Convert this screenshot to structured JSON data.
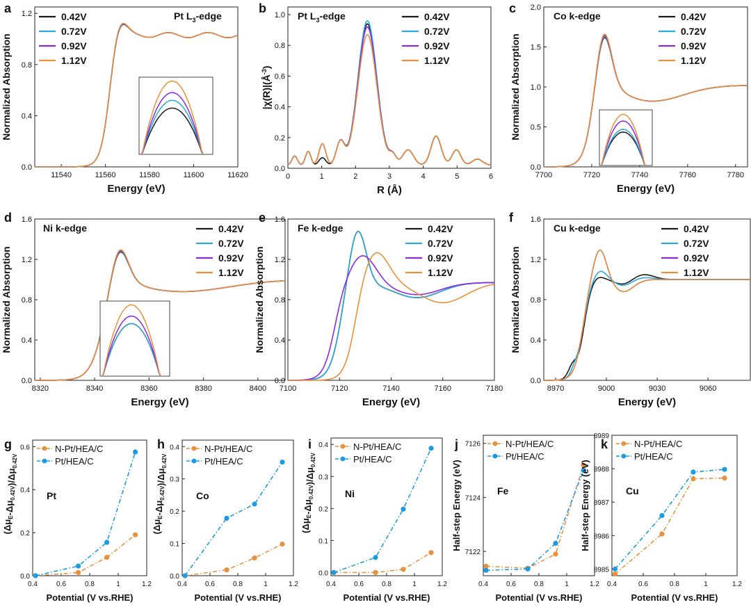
{
  "figure": {
    "colors": {
      "v042": "#1a1a1a",
      "v072": "#2aa7dd",
      "v092": "#8a2be2",
      "v112": "#e8913a",
      "npt": "#e8913a",
      "pt": "#1a9be6"
    }
  },
  "chart_data": [
    {
      "id": "a",
      "type": "line",
      "panel_label": "a",
      "title": "Pt L3-edge",
      "title_main": "Pt L",
      "title_sub": "3",
      "title_tail": "-edge",
      "xlabel": "Energy (eV)",
      "ylabel": "Normalized Absorption",
      "xlim": [
        11528,
        11620
      ],
      "ylim": [
        0,
        1.25
      ],
      "xticks": [
        11540,
        11560,
        11580,
        11600,
        11620
      ],
      "yticks": [
        0.0,
        0.4,
        0.8,
        1.2
      ],
      "ytick_decimals": 1,
      "legend": [
        "0.42V",
        "0.72V",
        "0.92V",
        "1.12V"
      ],
      "legend_position": "top-left",
      "curve": {
        "kind": "edge",
        "e0": 11562,
        "width": 2.2,
        "post": 1.03,
        "peak_x": 11566,
        "peak_h": 0.17,
        "peak_w": 3.5,
        "osc_amp": 0.02,
        "osc_period": 18
      },
      "series_offsets": [
        0,
        0,
        0,
        0
      ],
      "inset": {
        "label": "zoomed white-line peak"
      }
    },
    {
      "id": "b",
      "type": "line",
      "panel_label": "b",
      "title": "Pt L3-edge",
      "title_main": "Pt L",
      "title_sub": "3",
      "title_tail": "-edge",
      "xlabel": "R (Å)",
      "ylabel": "|χ(R)|(Å-3)",
      "ylabel_main": "|χ(R)|(Å",
      "ylabel_sup": "-3",
      "ylabel_tail": ")",
      "xlim": [
        0,
        6
      ],
      "ylim": [
        0,
        1.05
      ],
      "xticks": [
        0,
        1,
        2,
        3,
        4,
        5,
        6
      ],
      "yticks": [
        0.0,
        0.2,
        0.4,
        0.6,
        0.8,
        1.0
      ],
      "ytick_decimals": 1,
      "legend": [
        "0.42V",
        "0.72V",
        "0.92V",
        "1.12V"
      ],
      "legend_position": "top-right",
      "curve": {
        "kind": "ft",
        "main_peak_r": 2.35,
        "main_peak_heights": [
          0.92,
          0.94,
          0.9,
          0.85
        ]
      },
      "series_offsets": [
        0,
        0,
        0,
        0
      ]
    },
    {
      "id": "c",
      "type": "line",
      "panel_label": "c",
      "title": "Co k-edge",
      "xlabel": "Energy (eV)",
      "ylabel": "Normalized Absorption",
      "xlim": [
        7700,
        7785
      ],
      "ylim": [
        0,
        2.0
      ],
      "xticks": [
        7700,
        7720,
        7740,
        7760,
        7780
      ],
      "yticks": [
        0.0,
        0.5,
        1.0,
        1.5,
        2.0
      ],
      "ytick_decimals": 1,
      "legend": [
        "0.42V",
        "0.72V",
        "0.92V",
        "1.12V"
      ],
      "legend_position": "top-right",
      "curve": {
        "kind": "edge",
        "e0": 7720,
        "width": 2.3,
        "post": 1.02,
        "peak_x": 7725,
        "peak_h": 0.7,
        "peak_w": 3.2,
        "dip_x": 7745,
        "dip_h": -0.2,
        "dip_w": 6
      },
      "peak_values": [
        1.68,
        1.7,
        1.72,
        1.75
      ],
      "inset": {
        "label": "zoomed white-line peak"
      }
    },
    {
      "id": "d",
      "type": "line",
      "panel_label": "d",
      "title": "Ni k-edge",
      "xlabel": "Energy (eV)",
      "ylabel": "Normalized Absorption",
      "xlim": [
        8318,
        8410
      ],
      "ylim": [
        0,
        1.6
      ],
      "xticks": [
        8320,
        8340,
        8360,
        8380,
        8400
      ],
      "yticks": [
        0.0,
        0.4,
        0.8,
        1.2,
        1.6
      ],
      "ytick_decimals": 1,
      "legend": [
        "0.42V",
        "0.72V",
        "0.92V",
        "1.12V"
      ],
      "legend_position": "top-right",
      "curve": {
        "kind": "edge",
        "e0": 8343,
        "width": 2.6,
        "post": 1.0,
        "peak_x": 8349,
        "peak_h": 0.36,
        "peak_w": 3.2,
        "dip_x": 8372,
        "dip_h": -0.12,
        "dip_w": 8
      },
      "inset": {
        "label": "zoomed white-line peak"
      }
    },
    {
      "id": "e",
      "type": "line",
      "panel_label": "e",
      "title": "Fe k-edge",
      "xlabel": "Energy (eV)",
      "ylabel": "Normalized Absorption",
      "xlim": [
        7100,
        7180
      ],
      "ylim": [
        0,
        1.6
      ],
      "xticks": [
        7100,
        7120,
        7140,
        7160,
        7180
      ],
      "yticks": [
        0.0,
        0.4,
        0.8,
        1.2,
        1.6
      ],
      "ytick_decimals": 1,
      "legend": [
        "0.42V",
        "0.72V",
        "0.92V",
        "1.12V"
      ],
      "legend_position": "top-right",
      "peak_values": [
        1.45,
        1.45,
        1.2,
        1.26
      ]
    },
    {
      "id": "f",
      "type": "line",
      "panel_label": "f",
      "title": "Cu k-edge",
      "xlabel": "Energy (eV)",
      "ylabel": "Normalized Absorption",
      "xlim": [
        8963,
        9085
      ],
      "ylim": [
        0,
        1.6
      ],
      "xticks": [
        8970,
        9000,
        9030,
        9060
      ],
      "yticks": [
        0.0,
        0.4,
        0.8,
        1.2,
        1.6
      ],
      "ytick_decimals": 1,
      "legend": [
        "0.42V",
        "0.72V",
        "0.92V",
        "1.12V"
      ],
      "legend_position": "top-right",
      "peak_values": [
        1.03,
        1.09,
        1.31,
        1.29
      ]
    },
    {
      "id": "g",
      "type": "line",
      "panel_label": "g",
      "element": "Pt",
      "xlabel": "Potential (V vs.RHE)",
      "ylabel": "(Δμ_E-Δμ_0.42V)/Δμ_0.42V",
      "xlim": [
        0.4,
        1.2
      ],
      "ylim": [
        0,
        0.63
      ],
      "xticks": [
        0.4,
        0.6,
        0.8,
        1.0,
        1.2
      ],
      "yticks": [
        0.0,
        0.2,
        0.4,
        0.6
      ],
      "ytick_decimals": 1,
      "x": [
        0.42,
        0.72,
        0.92,
        1.12
      ],
      "series": [
        {
          "name": "N-Pt/HEA/C",
          "values": [
            0.0,
            0.015,
            0.085,
            0.19
          ]
        },
        {
          "name": "Pt/HEA/C",
          "values": [
            0.0,
            0.045,
            0.155,
            0.575
          ]
        }
      ]
    },
    {
      "id": "h",
      "type": "line",
      "panel_label": "h",
      "element": "Co",
      "xlabel": "Potential (V vs.RHE)",
      "ylabel": "(Δμ_E-Δμ_0.42V)/Δμ_0.42V",
      "xlim": [
        0.4,
        1.2
      ],
      "ylim": [
        0,
        0.42
      ],
      "xticks": [
        0.4,
        0.6,
        0.8,
        1.0,
        1.2
      ],
      "yticks": [
        0.0,
        0.1,
        0.2,
        0.3,
        0.4
      ],
      "ytick_decimals": 1,
      "x": [
        0.42,
        0.72,
        0.92,
        1.12
      ],
      "series": [
        {
          "name": "N-Pt/HEA/C",
          "values": [
            0.0,
            0.018,
            0.055,
            0.098
          ]
        },
        {
          "name": "Pt/HEA/C",
          "values": [
            0.0,
            0.178,
            0.222,
            0.352
          ]
        }
      ]
    },
    {
      "id": "i",
      "type": "line",
      "panel_label": "i",
      "element": "Ni",
      "xlabel": "Potential (V vs.RHE)",
      "ylabel": "(Δμ_E-Δμ_0.42V)/Δμ_0.42V",
      "xlim": [
        0.4,
        1.2
      ],
      "ylim": [
        -0.01,
        0.42
      ],
      "xticks": [
        0.4,
        0.6,
        0.8,
        1.0,
        1.2
      ],
      "yticks": [
        0.0,
        0.1,
        0.2,
        0.3,
        0.4
      ],
      "ytick_decimals": 1,
      "x": [
        0.42,
        0.72,
        0.92,
        1.12
      ],
      "series": [
        {
          "name": "N-Pt/HEA/C",
          "values": [
            0.0,
            0.0,
            0.01,
            0.062
          ]
        },
        {
          "name": "Pt/HEA/C",
          "values": [
            0.0,
            0.047,
            0.198,
            0.388
          ]
        }
      ]
    },
    {
      "id": "j",
      "type": "line",
      "panel_label": "j",
      "element": "Fe",
      "xlabel": "Potential (V vs.RHE)",
      "ylabel": "Half-step Energy (eV)",
      "xlim": [
        0.4,
        1.2
      ],
      "ylim": [
        7121.1,
        7126.3
      ],
      "xticks": [
        0.4,
        0.6,
        0.8,
        1.0,
        1.2
      ],
      "yticks": [
        7122,
        7124,
        7126
      ],
      "ytick_decimals": 0,
      "x": [
        0.42,
        0.72,
        0.92,
        1.12
      ],
      "series": [
        {
          "name": "N-Pt/HEA/C",
          "values": [
            7121.45,
            7121.38,
            7121.9,
            7125.2
          ]
        },
        {
          "name": "Pt/HEA/C",
          "values": [
            7121.3,
            7121.35,
            7122.3,
            7125.0
          ]
        }
      ]
    },
    {
      "id": "k",
      "type": "line",
      "panel_label": "k",
      "element": "Cu",
      "xlabel": "Potential (V vs.RHE)",
      "ylabel": "Half-step Energy (eV)",
      "xlim": [
        0.4,
        1.2
      ],
      "ylim": [
        8984.8,
        8989.0
      ],
      "xticks": [
        0.4,
        0.6,
        0.8,
        1.0,
        1.2
      ],
      "yticks": [
        8985,
        8986,
        8987,
        8988,
        8989
      ],
      "ytick_decimals": 0,
      "x": [
        0.42,
        0.72,
        0.92,
        1.12
      ],
      "series": [
        {
          "name": "N-Pt/HEA/C",
          "values": [
            8984.85,
            8986.05,
            8987.7,
            8987.72
          ]
        },
        {
          "name": "Pt/HEA/C",
          "values": [
            8985.0,
            8986.6,
            8987.9,
            8987.98
          ]
        }
      ]
    }
  ]
}
